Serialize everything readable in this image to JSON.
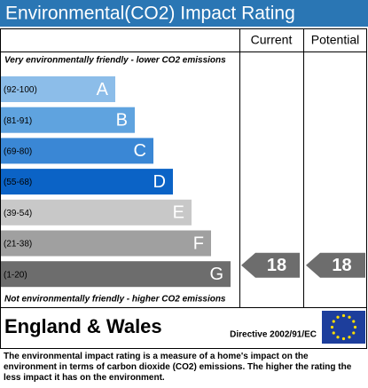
{
  "title": "Environmental(CO2) Impact Rating",
  "headers": [
    "Current",
    "Potential"
  ],
  "top_note": "Very environmentally friendly - lower CO2 emissions",
  "bottom_note": "Not environmentally friendly - higher CO2 emissions",
  "bands": [
    {
      "range": "(92-100)",
      "letter": "A",
      "color": "#8cbde9"
    },
    {
      "range": "(81-91)",
      "letter": "B",
      "color": "#5fa3df"
    },
    {
      "range": "(69-80)",
      "letter": "C",
      "color": "#3a87d5"
    },
    {
      "range": "(55-68)",
      "letter": "D",
      "color": "#0b63c6"
    },
    {
      "range": "(39-54)",
      "letter": "E",
      "color": "#c8c8c8"
    },
    {
      "range": "(21-38)",
      "letter": "F",
      "color": "#a0a0a0"
    },
    {
      "range": "(1-20)",
      "letter": "G",
      "color": "#6d6d6d"
    }
  ],
  "current": 18,
  "potential": 18,
  "footer": {
    "region": "England & Wales",
    "directive": "Directive 2002/91/EC"
  },
  "description": "The environmental impact rating is a measure of a home's impact on the environment in terms of carbon dioxide (CO2) emissions. The higher the rating the less impact it has on the environment."
}
